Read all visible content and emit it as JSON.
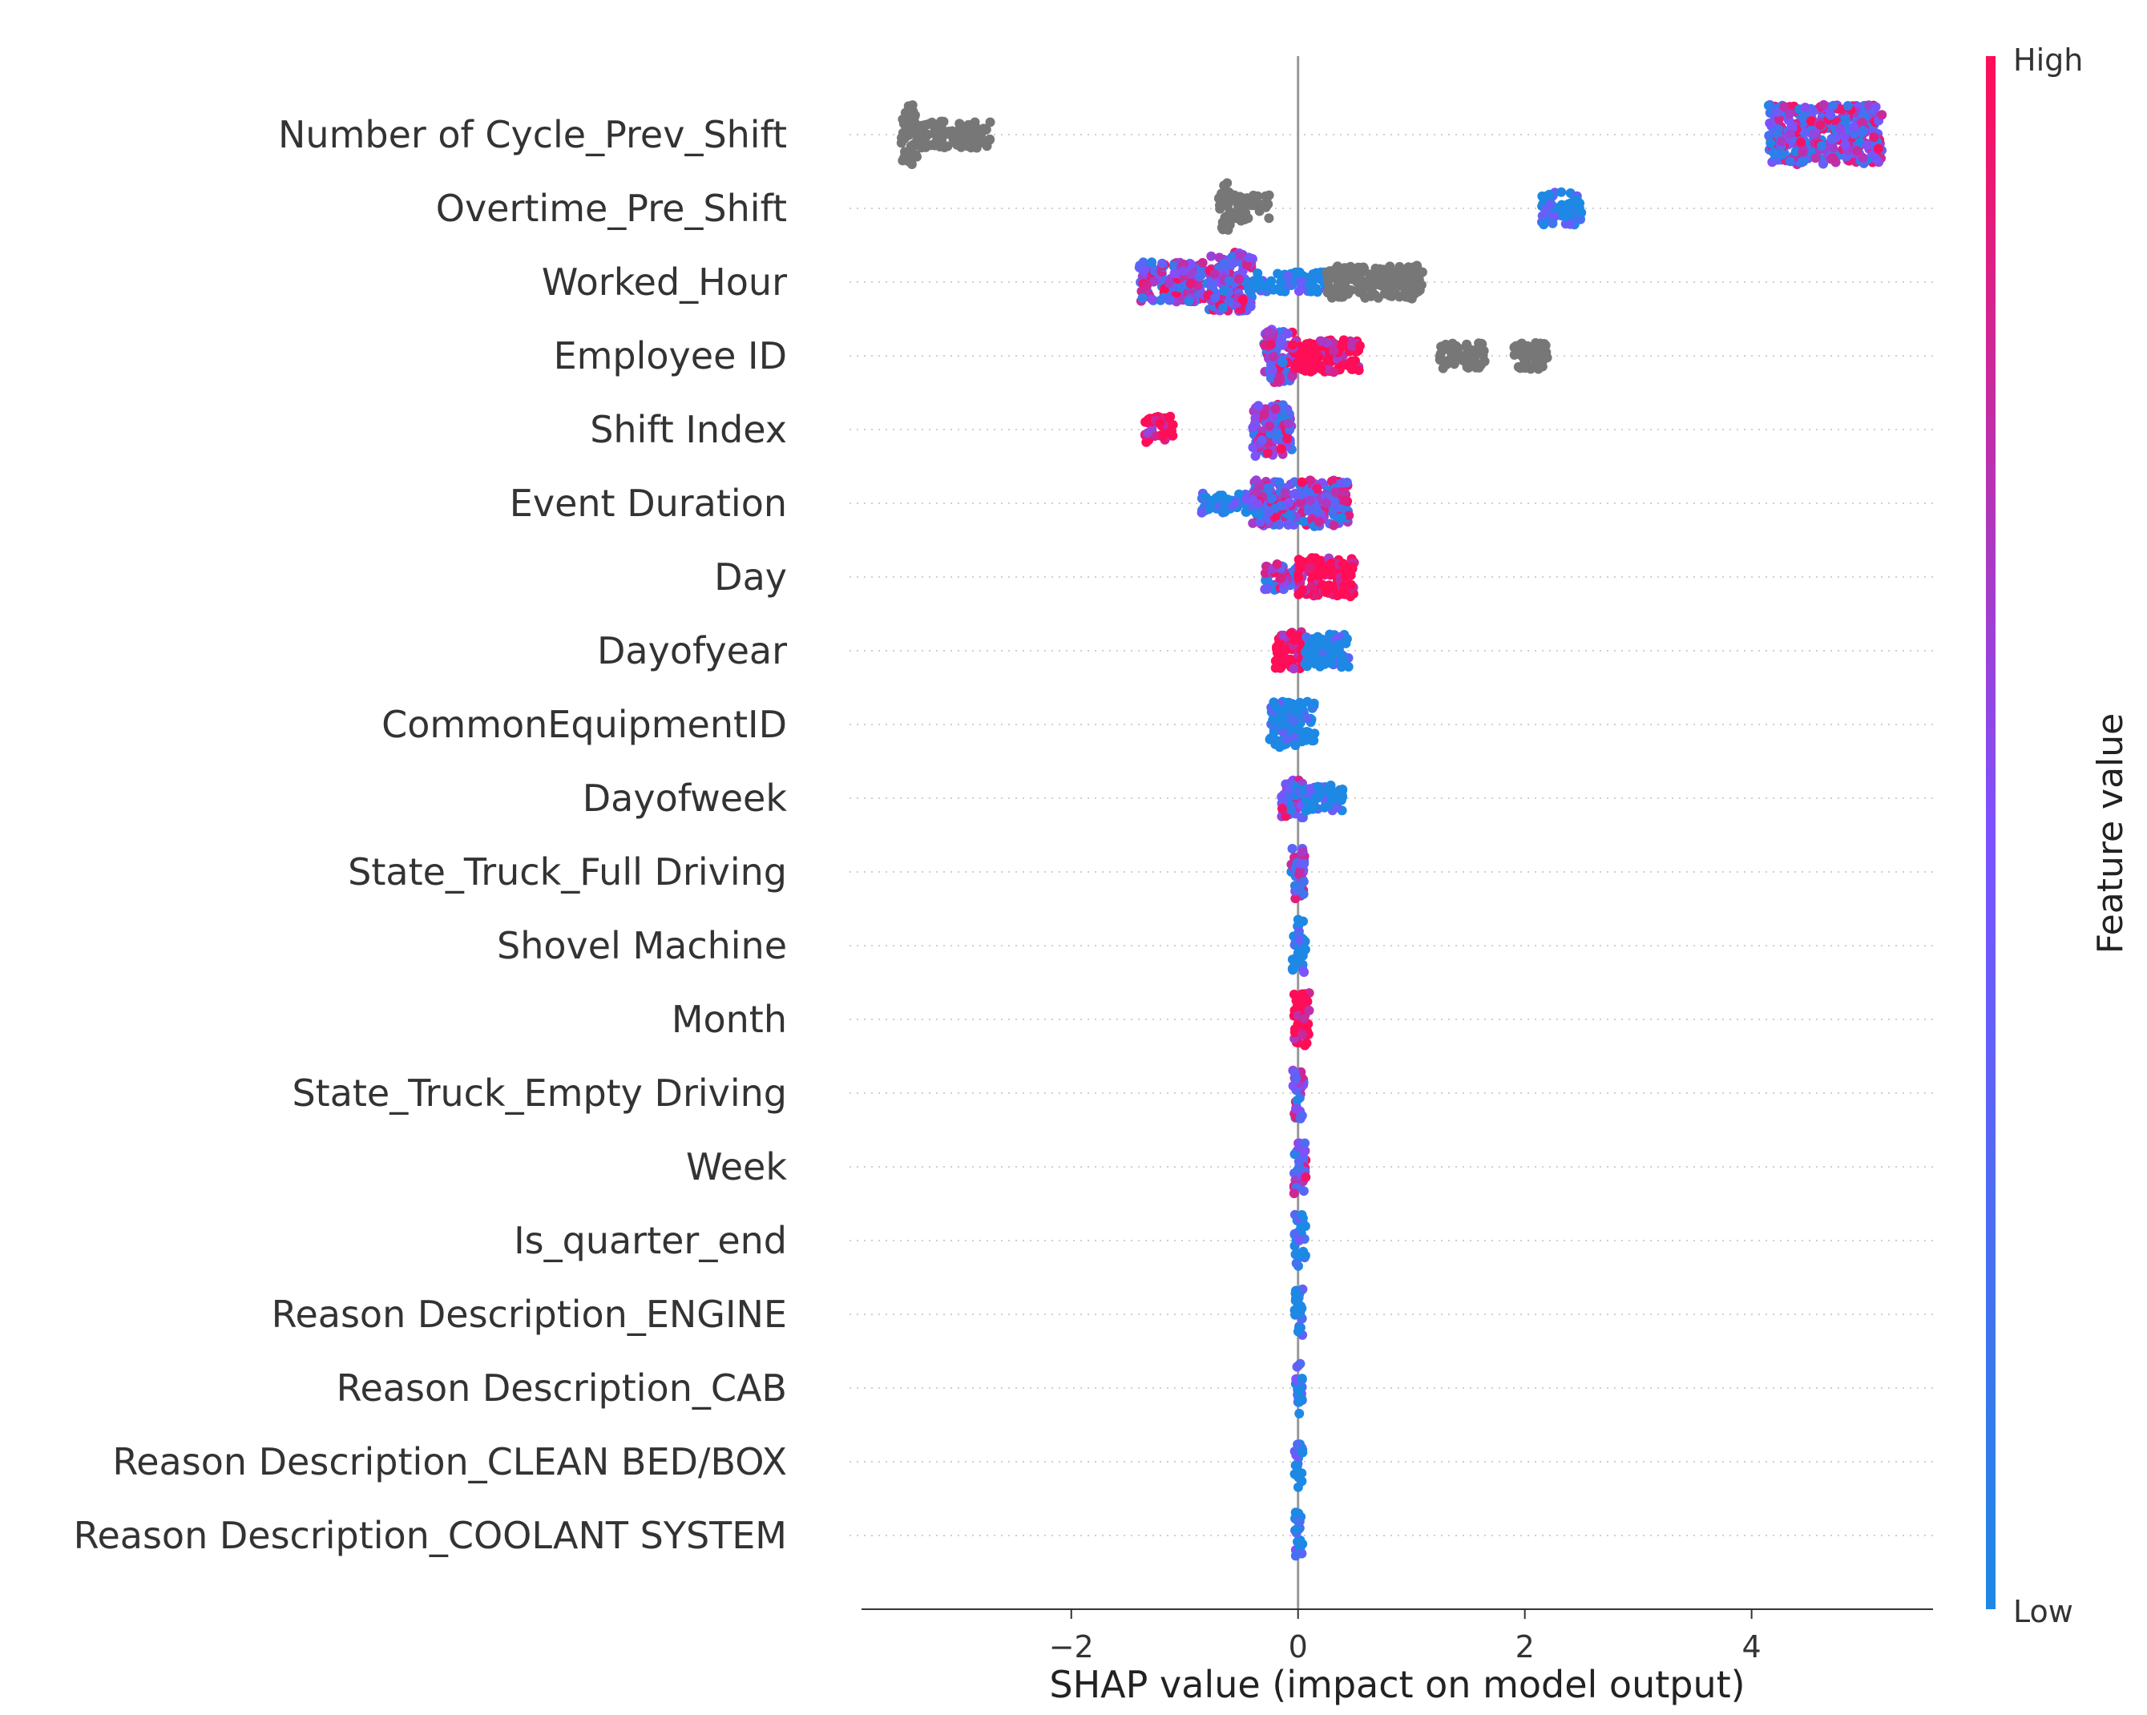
{
  "chart_data": {
    "type": "scatter",
    "subtype": "shap_beeswarm_summary",
    "xlabel": "SHAP value (impact on model output)",
    "ylabel": "",
    "xlim": [
      -3.85,
      5.6
    ],
    "xticks": [
      -2,
      0,
      2,
      4
    ],
    "xtick_labels": [
      "−2",
      "0",
      "2",
      "4"
    ],
    "colorbar": {
      "title": "Feature value",
      "high_label": "High",
      "low_label": "Low",
      "low_color": "#1e88e5",
      "high_color": "#ff0d57",
      "mid_color": "#7c52ff",
      "gray_color": "#777777"
    },
    "features": [
      {
        "name": "Number of Cycle_Prev_Shift",
        "segments": [
          [
            -3.5,
            -3.35,
            0.09,
            "gray"
          ],
          [
            -3.35,
            -2.7,
            0.04,
            "gray"
          ],
          [
            4.15,
            5.15,
            0.09,
            "mix"
          ]
        ]
      },
      {
        "name": "Overtime_Pre_Shift",
        "segments": [
          [
            -0.7,
            -0.6,
            0.08,
            "gray"
          ],
          [
            -0.6,
            -0.25,
            0.04,
            "gray"
          ],
          [
            2.15,
            2.5,
            0.05,
            "blue"
          ]
        ]
      },
      {
        "name": "Worked_Hour",
        "segments": [
          [
            -1.4,
            -0.8,
            0.06,
            "mix"
          ],
          [
            -0.8,
            -0.4,
            0.09,
            "mix"
          ],
          [
            -0.4,
            0.25,
            0.03,
            "blue"
          ],
          [
            0.25,
            1.1,
            0.05,
            "gray"
          ]
        ]
      },
      {
        "name": "Employee ID",
        "segments": [
          [
            -0.3,
            -0.05,
            0.08,
            "mix"
          ],
          [
            -0.05,
            0.55,
            0.05,
            "red"
          ],
          [
            1.25,
            1.65,
            0.04,
            "gray"
          ],
          [
            1.9,
            2.2,
            0.04,
            "gray"
          ]
        ]
      },
      {
        "name": "Shift Index",
        "segments": [
          [
            -1.35,
            -1.1,
            0.04,
            "red"
          ],
          [
            -0.4,
            -0.05,
            0.08,
            "mix"
          ]
        ]
      },
      {
        "name": "Event Duration",
        "segments": [
          [
            -0.85,
            -0.4,
            0.03,
            "blue"
          ],
          [
            -0.4,
            0.45,
            0.07,
            "mix"
          ]
        ]
      },
      {
        "name": "Day",
        "segments": [
          [
            -0.3,
            0.0,
            0.04,
            "mix"
          ],
          [
            0.0,
            0.5,
            0.06,
            "red"
          ]
        ]
      },
      {
        "name": "Dayofyear",
        "segments": [
          [
            -0.2,
            0.05,
            0.06,
            "red"
          ],
          [
            0.05,
            0.45,
            0.05,
            "blue"
          ]
        ]
      },
      {
        "name": "CommonEquipmentID",
        "segments": [
          [
            -0.25,
            0.15,
            0.07,
            "blue"
          ]
        ]
      },
      {
        "name": "Dayofweek",
        "segments": [
          [
            -0.15,
            0.05,
            0.06,
            "mix"
          ],
          [
            0.05,
            0.4,
            0.04,
            "blue"
          ]
        ]
      },
      {
        "name": "State_Truck_Full Driving",
        "segments": [
          [
            -0.06,
            0.06,
            0.08,
            "mix"
          ]
        ]
      },
      {
        "name": "Shovel Machine",
        "segments": [
          [
            -0.05,
            0.07,
            0.08,
            "blue"
          ]
        ]
      },
      {
        "name": "Month",
        "segments": [
          [
            -0.04,
            0.1,
            0.08,
            "red"
          ]
        ]
      },
      {
        "name": "State_Truck_Empty Driving",
        "segments": [
          [
            -0.05,
            0.05,
            0.08,
            "mix"
          ]
        ]
      },
      {
        "name": "Week",
        "segments": [
          [
            -0.04,
            0.07,
            0.08,
            "mix"
          ]
        ]
      },
      {
        "name": "Is_quarter_end",
        "segments": [
          [
            -0.03,
            0.07,
            0.08,
            "blue"
          ]
        ]
      },
      {
        "name": "Reason Description_ENGINE",
        "segments": [
          [
            -0.03,
            0.04,
            0.08,
            "blue"
          ]
        ]
      },
      {
        "name": "Reason Description_CAB",
        "segments": [
          [
            -0.03,
            0.04,
            0.08,
            "blue"
          ]
        ]
      },
      {
        "name": "Reason Description_CLEAN BED/BOX",
        "segments": [
          [
            -0.03,
            0.04,
            0.08,
            "blue"
          ]
        ]
      },
      {
        "name": "Reason Description_COOLANT SYSTEM",
        "segments": [
          [
            -0.03,
            0.04,
            0.08,
            "blue"
          ]
        ]
      }
    ]
  }
}
